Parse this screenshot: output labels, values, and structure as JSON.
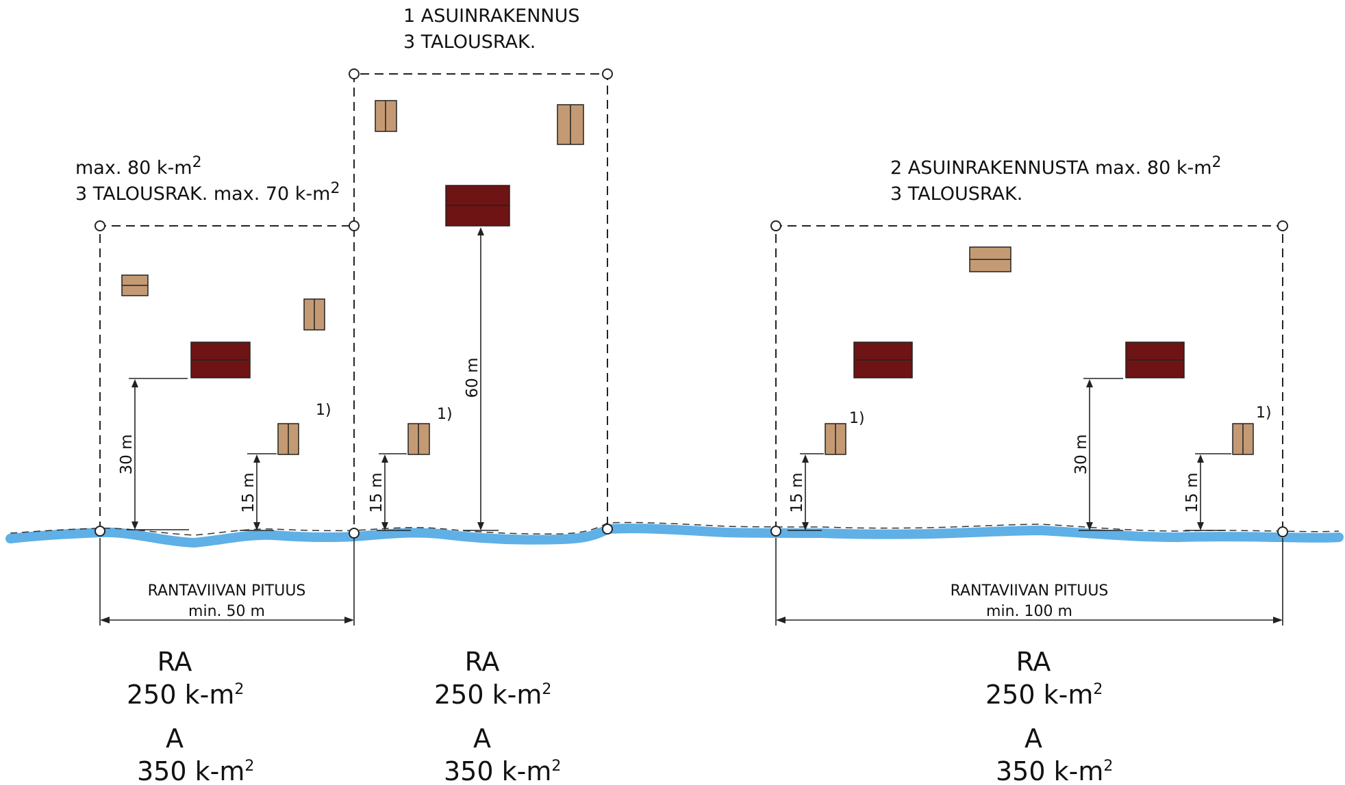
{
  "plots": {
    "left": {
      "note_line1": "max. 80 k-m",
      "note_line1_sup": "2",
      "note_line2": "3 TALOUSRAK. max. 70 k-m",
      "note_line2_sup": "2"
    },
    "middle": {
      "note_line1": "1 ASUINRAKENNUS",
      "note_line2": "3 TALOUSRAK."
    },
    "right": {
      "note_line1": "2 ASUINRAKENNUSTA max. 80 k-m",
      "note_line1_sup": "2",
      "note_line2": "3 TALOUSRAK."
    }
  },
  "dimensions": {
    "d30": "30 m",
    "d15": "15 m",
    "d60": "60 m",
    "footnote": "1)"
  },
  "shoreline": {
    "left_title": "RANTAVIIVAN PITUUS",
    "left_min": "min. 50 m",
    "right_title": "RANTAVIIVAN PITUUS",
    "right_min": "min. 100 m"
  },
  "zones": [
    {
      "code": "RA",
      "value": "250 k-m",
      "sup": "2",
      "code2": "A",
      "value2": "350 k-m",
      "sup2": "2"
    },
    {
      "code": "RA",
      "value": "250 k-m",
      "sup": "2",
      "code2": "A",
      "value2": "350 k-m",
      "sup2": "2"
    },
    {
      "code": "RA",
      "value": "250 k-m",
      "sup": "2",
      "code2": "A",
      "value2": "350 k-m",
      "sup2": "2"
    }
  ],
  "colors": {
    "residential_building": "#6e1414",
    "auxiliary_building": "#c49a74",
    "water": "#5fb0e6"
  }
}
